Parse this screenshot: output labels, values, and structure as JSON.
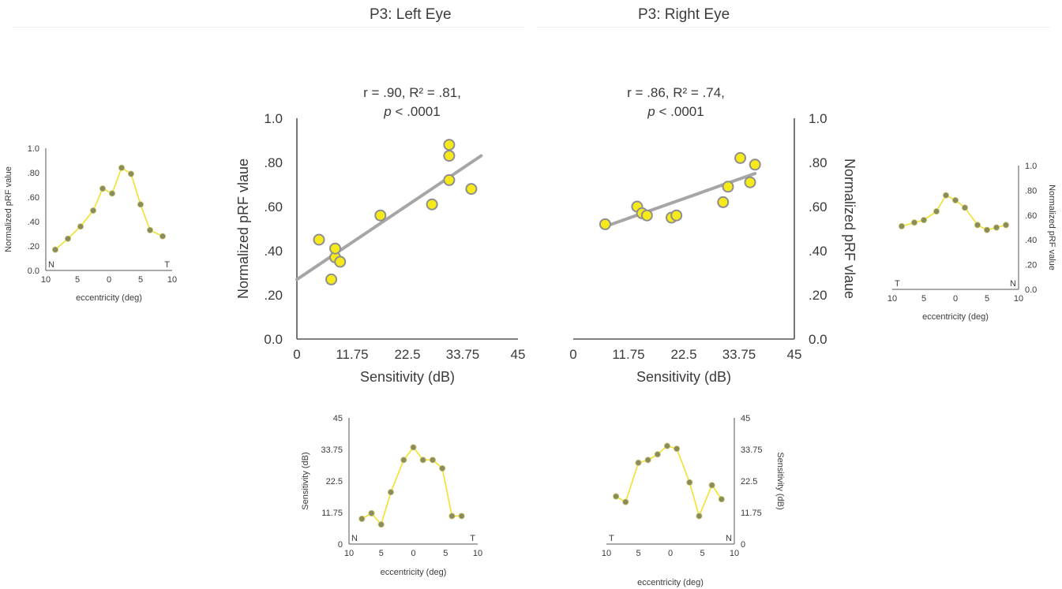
{
  "titles": {
    "left": "P3: Left Eye",
    "right": "P3: Right Eye"
  },
  "colors": {
    "marker_fill": "#f7ea1a",
    "marker_stroke": "#8f8f8f",
    "profile_line": "#f2e12a",
    "profile_marker": "#8b8c5c",
    "regression_line": "#a6a6a6",
    "axis": "#555555",
    "text": "#3a3a3a"
  },
  "chart_data": [
    {
      "id": "left-pRF-profile",
      "type": "line",
      "title": "",
      "xlabel": "eccentricity (deg)",
      "ylabel": "Normalized pRF value",
      "x_ticks": [
        "10",
        "5",
        "0",
        "5",
        "10"
      ],
      "y_ticks": [
        "0.0",
        ".20",
        ".40",
        ".60",
        ".80",
        "1.0"
      ],
      "x_end_labels": {
        "left": "N",
        "right": "T"
      },
      "xlim": [
        -10,
        10
      ],
      "ylim": [
        0,
        1
      ],
      "x": [
        -8.5,
        -6.5,
        -4.5,
        -2.5,
        -1,
        0.5,
        2,
        3.5,
        5,
        6.5,
        8.5
      ],
      "y": [
        0.17,
        0.26,
        0.36,
        0.49,
        0.67,
        0.63,
        0.84,
        0.79,
        0.54,
        0.33,
        0.28
      ]
    },
    {
      "id": "left-scatter",
      "type": "scatter",
      "title": "r = .90, R² = .81,",
      "title_line2": "p < .0001",
      "title_line2_italic": "p",
      "title_line2_rest": " < .0001",
      "xlabel": "Sensitivity (dB)",
      "ylabel": "Normalized pRF vlaue",
      "x_ticks": [
        "0",
        "11.75",
        "22.5",
        "33.75",
        "45"
      ],
      "y_ticks": [
        "0.0",
        ".20",
        ".40",
        ".60",
        ".80",
        "1.0"
      ],
      "xlim": [
        0,
        45
      ],
      "ylim": [
        0,
        1
      ],
      "x": [
        4.5,
        7.0,
        7.8,
        7.8,
        8.8,
        17.0,
        27.5,
        31.0,
        31.0,
        31.0,
        35.5
      ],
      "y": [
        0.45,
        0.27,
        0.37,
        0.41,
        0.35,
        0.56,
        0.61,
        0.88,
        0.83,
        0.72,
        0.68
      ],
      "fit_line": {
        "x": [
          0,
          37.5
        ],
        "y": [
          0.27,
          0.83
        ]
      }
    },
    {
      "id": "right-scatter",
      "type": "scatter",
      "title": "r = .86, R² = .74,",
      "title_line2": "p < .0001",
      "title_line2_italic": "p",
      "title_line2_rest": " < .0001",
      "xlabel": "Sensitivity (dB)",
      "ylabel": "Normalized pRF vlaue",
      "x_ticks": [
        "0",
        "11.75",
        "22.5",
        "33.75",
        "45"
      ],
      "y_ticks": [
        "0.0",
        ".20",
        ".40",
        ".60",
        ".80",
        "1.0"
      ],
      "xlim": [
        0,
        45
      ],
      "ylim": [
        0,
        1
      ],
      "x": [
        6.5,
        13.0,
        14.0,
        15.0,
        20.0,
        21.0,
        30.5,
        31.5,
        34.0,
        36.0,
        37.0
      ],
      "y": [
        0.52,
        0.6,
        0.57,
        0.56,
        0.55,
        0.56,
        0.62,
        0.69,
        0.82,
        0.71,
        0.79
      ],
      "fit_line": {
        "x": [
          6.5,
          37.0
        ],
        "y": [
          0.51,
          0.75
        ]
      }
    },
    {
      "id": "right-pRF-profile",
      "type": "line",
      "title": "",
      "xlabel": "eccentricity (deg)",
      "ylabel": "Normalized pRF value",
      "x_ticks": [
        "10",
        "5",
        "0",
        "5",
        "10"
      ],
      "y_ticks": [
        "0.0",
        ".20",
        ".40",
        ".60",
        ".80",
        "1.0"
      ],
      "x_end_labels": {
        "left": "T",
        "right": "N"
      },
      "xlim": [
        -10,
        10
      ],
      "ylim": [
        0,
        1
      ],
      "x": [
        -8.5,
        -6.5,
        -5,
        -3,
        -1.5,
        0,
        1.5,
        3.5,
        5,
        6.5,
        8
      ],
      "y": [
        0.51,
        0.54,
        0.56,
        0.63,
        0.76,
        0.72,
        0.66,
        0.52,
        0.48,
        0.5,
        0.52
      ]
    },
    {
      "id": "left-sensitivity-profile",
      "type": "line",
      "title": "",
      "xlabel": "eccentricity (deg)",
      "ylabel": "Sensitivity (dB)",
      "x_ticks": [
        "10",
        "5",
        "0",
        "5",
        "10"
      ],
      "y_ticks": [
        "0",
        "11.75",
        "22.5",
        "33.75",
        "45"
      ],
      "x_end_labels": {
        "left": "N",
        "right": "T"
      },
      "xlim": [
        -10,
        10
      ],
      "ylim": [
        0,
        45
      ],
      "x": [
        -8,
        -6.5,
        -5,
        -3.5,
        -1.5,
        0,
        1.5,
        3,
        4.5,
        6,
        7.5
      ],
      "y": [
        9,
        11,
        7,
        18.5,
        30,
        34.5,
        30,
        30,
        27,
        10,
        10
      ]
    },
    {
      "id": "right-sensitivity-profile",
      "type": "line",
      "title": "",
      "xlabel": "eccentricity (deg)",
      "ylabel": "Sensitivity (dB)",
      "x_ticks": [
        "10",
        "5",
        "0",
        "5",
        "10"
      ],
      "y_ticks": [
        "0",
        "11.75",
        "22.5",
        "33.75",
        "45"
      ],
      "x_end_labels": {
        "left": "T",
        "right": "N"
      },
      "xlim": [
        -10,
        10
      ],
      "ylim": [
        0,
        45
      ],
      "x": [
        -8.5,
        -7,
        -5,
        -3.5,
        -2,
        -0.5,
        1,
        3,
        4.5,
        6.5,
        8
      ],
      "y": [
        17,
        15,
        29,
        30,
        32,
        35,
        34,
        22,
        10,
        21,
        16
      ]
    }
  ]
}
